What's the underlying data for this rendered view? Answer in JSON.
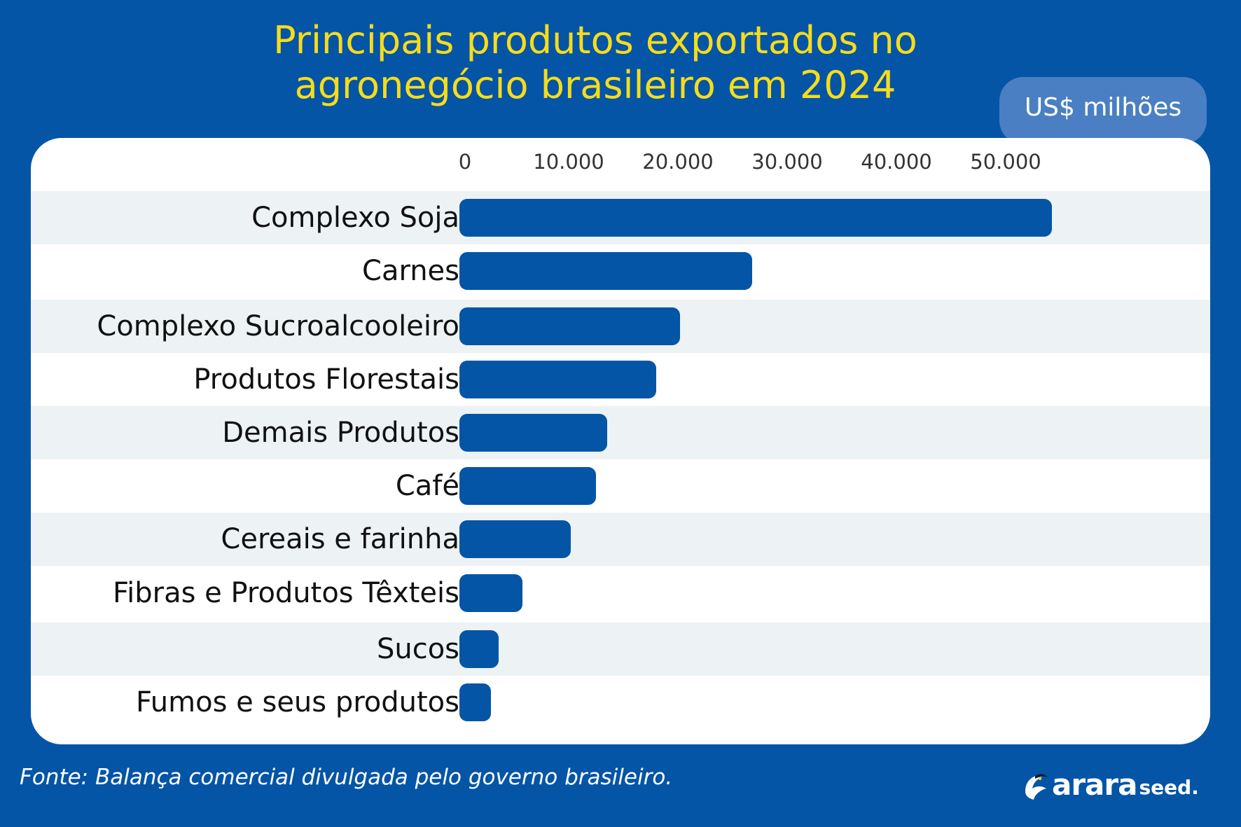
{
  "chart_data": {
    "type": "bar",
    "orientation": "horizontal",
    "title_lines": [
      "Principais produtos exportados no",
      "agronegócio brasileiro em 2024"
    ],
    "unit": "US$ milhões",
    "categories": [
      "Complexo Soja",
      "Carnes",
      "Complexo Sucroalcooleiro",
      "Produtos Florestais",
      "Demais Produtos",
      "Café",
      "Cereais e farinha",
      "Fibras e Produtos Têxteis",
      "Sucos",
      "Fumos e seus produtos"
    ],
    "values": [
      54200,
      26800,
      20200,
      18000,
      13500,
      12500,
      10200,
      5800,
      3600,
      2900
    ],
    "xlim": [
      0,
      60000
    ],
    "xticks": [
      0,
      10000,
      20000,
      30000,
      40000,
      50000
    ],
    "xtick_labels": [
      "0",
      "10.000",
      "20.000",
      "30.000",
      "40.000",
      "50.000"
    ],
    "bar_color": "#0455a6"
  },
  "source": "Fonte: Balança comercial divulgada pelo governo brasileiro.",
  "logo": {
    "main": "arara",
    "sub": "seed."
  },
  "colors": {
    "background": "#0455a6",
    "title": "#f7dc1a",
    "badge": "#4a7fc4",
    "row_alt": "#edf2f4"
  }
}
